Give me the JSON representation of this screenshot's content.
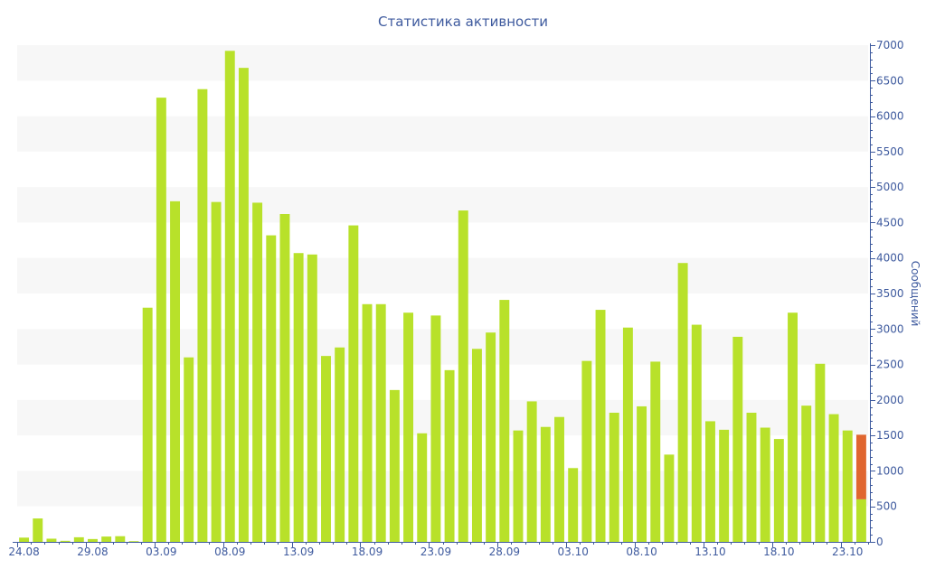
{
  "chart_data": {
    "type": "bar",
    "title": "Статистика активности",
    "xlabel": "",
    "ylabel": "Сообщений",
    "y_axis_side": "right",
    "ylim": [
      0,
      7000
    ],
    "y_ticks": [
      0,
      500,
      1000,
      1500,
      2000,
      2500,
      3000,
      3500,
      4000,
      4500,
      5000,
      5500,
      6000,
      6500,
      7000
    ],
    "x_tick_labels": [
      "24.08",
      "29.08",
      "03.09",
      "08.09",
      "13.09",
      "18.09",
      "23.09",
      "28.09",
      "03.10",
      "08.10",
      "13.10",
      "18.10",
      "23.10"
    ],
    "x_tick_label_every": 5,
    "grid": "alternating horizontal bands",
    "legend": "none",
    "colors": {
      "bar": "#b8e12a",
      "highlight": "#e0662f",
      "band": "#f7f7f7",
      "axis": "#3e5a9e"
    },
    "values": [
      60,
      330,
      45,
      15,
      65,
      40,
      75,
      80,
      10,
      3300,
      6260,
      4800,
      2600,
      6380,
      4790,
      6920,
      6680,
      4780,
      4320,
      4620,
      4070,
      4050,
      2620,
      2740,
      4460,
      3350,
      3350,
      2140,
      3230,
      1530,
      3190,
      2420,
      4670,
      2720,
      2950,
      3410,
      1570,
      1980,
      1620,
      1760,
      1040,
      2550,
      3270,
      1820,
      3020,
      1910,
      2540,
      1230,
      3930,
      3060,
      1700,
      1580,
      2890,
      1820,
      1610,
      1450,
      3230,
      1920,
      2510,
      1800,
      1570,
      600
    ],
    "last_bar_extra": 910
  }
}
